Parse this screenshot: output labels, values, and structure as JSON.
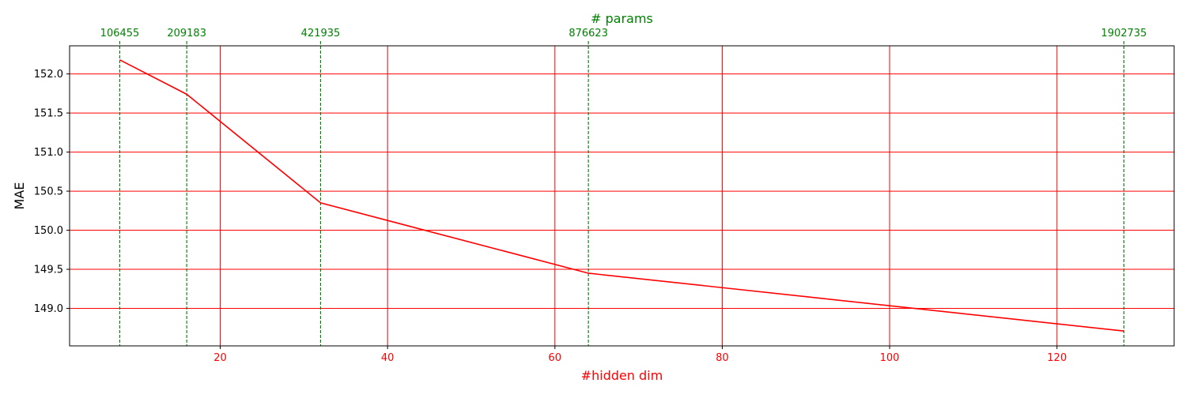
{
  "chart_data": {
    "type": "line",
    "xlabel": "#hidden dim",
    "ylabel": "MAE",
    "top_axis_label": "# params",
    "xlim": [
      2,
      134
    ],
    "ylim": [
      148.52,
      152.36
    ],
    "x_ticks": [
      20,
      40,
      60,
      80,
      100,
      120
    ],
    "x_tick_labels": [
      "20",
      "40",
      "60",
      "80",
      "100",
      "120"
    ],
    "y_ticks": [
      149.0,
      149.5,
      150.0,
      150.5,
      151.0,
      151.5,
      152.0
    ],
    "y_tick_labels": [
      "149.0",
      "149.5",
      "150.0",
      "150.5",
      "151.0",
      "151.5",
      "152.0"
    ],
    "grid": true,
    "series": [
      {
        "x": [
          8,
          16,
          32,
          64,
          128
        ],
        "y": [
          152.18,
          151.74,
          150.35,
          149.45,
          148.71
        ],
        "color": "#ff0000"
      }
    ],
    "param_markers": [
      {
        "x": 8,
        "label": "106455"
      },
      {
        "x": 16,
        "label": "209183"
      },
      {
        "x": 32,
        "label": "421935"
      },
      {
        "x": 64,
        "label": "876623"
      },
      {
        "x": 128,
        "label": "1902735"
      }
    ],
    "colors": {
      "line": "#ff0000",
      "grid": "#ff0000",
      "x_axis_text": "#ff0000",
      "param_marker": "#008000",
      "axis": "#000000"
    }
  }
}
